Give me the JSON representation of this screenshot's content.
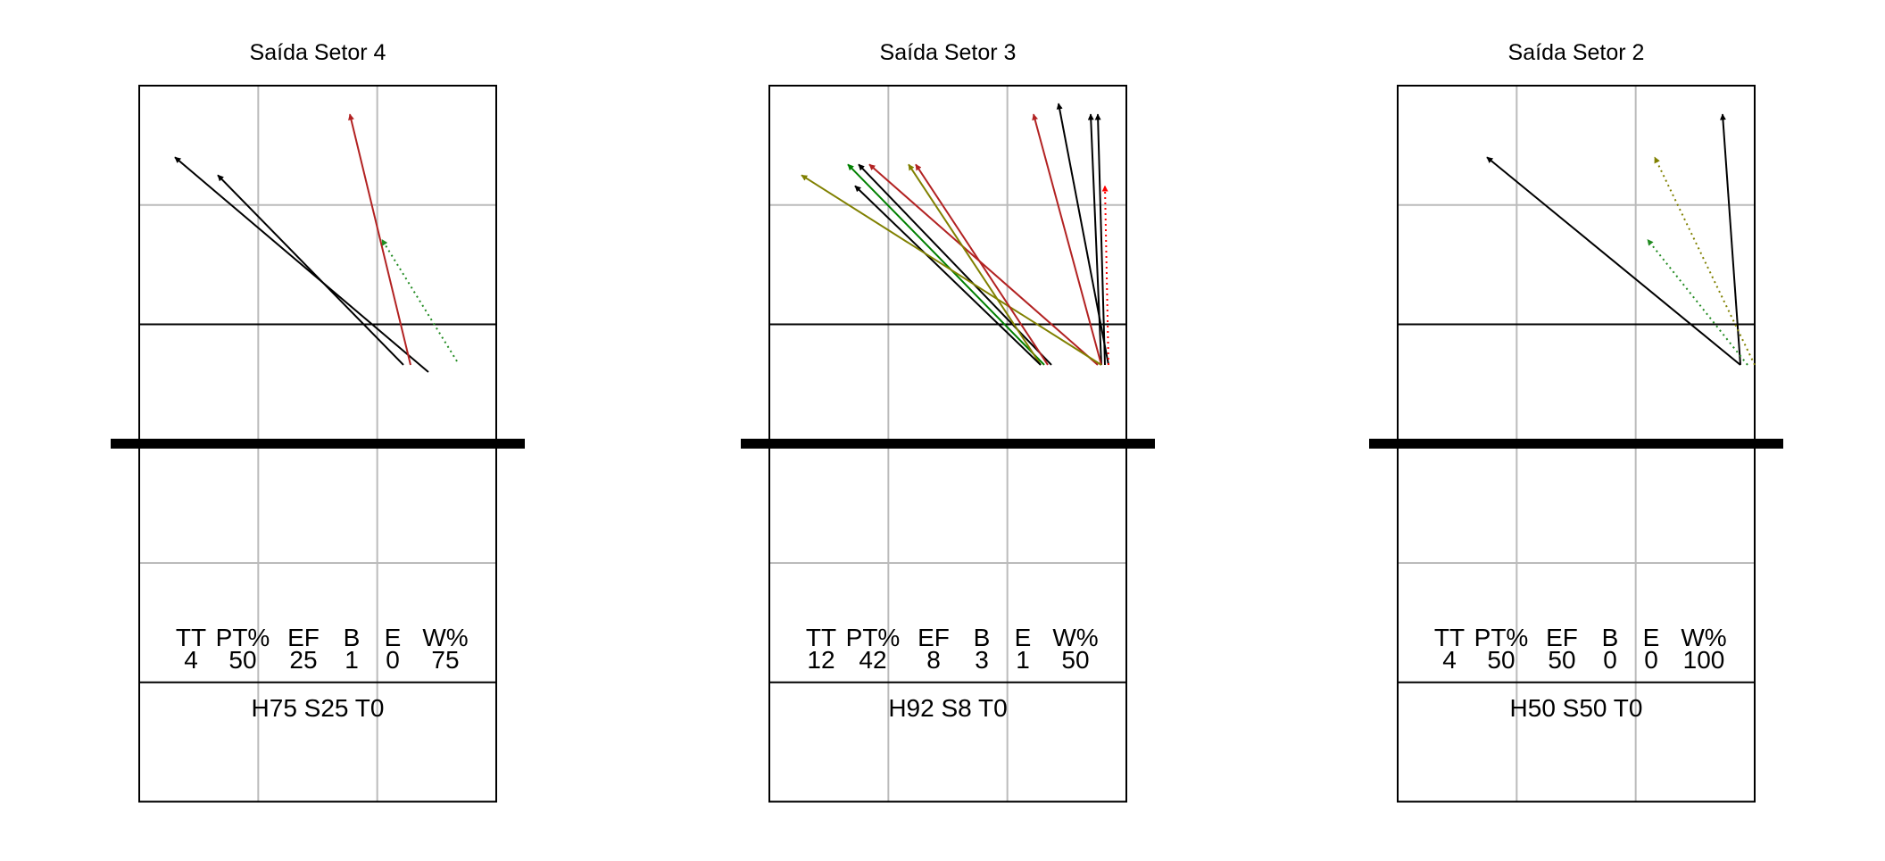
{
  "chart_data": [
    {
      "type": "arrow-map",
      "title": "Saída Setor 4",
      "stats_header": [
        "TT",
        "PT%",
        "EF",
        "B",
        "E",
        "W%"
      ],
      "stats_values": [
        "4",
        "50",
        "25",
        "1",
        "0",
        "75"
      ],
      "footer": "H75 S25 T0",
      "arrows": [
        {
          "from": [
            8.1,
            2.0
          ],
          "to": [
            1.0,
            8.0
          ],
          "color": "#000000",
          "style": "solid"
        },
        {
          "from": [
            7.4,
            2.2
          ],
          "to": [
            2.2,
            7.5
          ],
          "color": "#000000",
          "style": "solid"
        },
        {
          "from": [
            7.6,
            2.2
          ],
          "to": [
            5.9,
            9.2
          ],
          "color": "#b22222",
          "style": "solid"
        },
        {
          "from": [
            8.9,
            2.3
          ],
          "to": [
            6.8,
            5.7
          ],
          "color": "#228b22",
          "style": "dotted"
        }
      ]
    },
    {
      "type": "arrow-map",
      "title": "Saída Setor 3",
      "stats_header": [
        "TT",
        "PT%",
        "EF",
        "B",
        "E",
        "W%"
      ],
      "stats_values": [
        "12",
        "42",
        "8",
        "3",
        "1",
        "50"
      ],
      "footer": "H92 S8 T0",
      "arrows": [
        {
          "from": [
            9.5,
            2.2
          ],
          "to": [
            8.1,
            9.5
          ],
          "color": "#000000",
          "style": "solid"
        },
        {
          "from": [
            9.3,
            2.2
          ],
          "to": [
            9.0,
            9.2
          ],
          "color": "#000000",
          "style": "solid"
        },
        {
          "from": [
            9.4,
            2.2
          ],
          "to": [
            9.2,
            9.2
          ],
          "color": "#000000",
          "style": "solid"
        },
        {
          "from": [
            9.3,
            2.2
          ],
          "to": [
            7.4,
            9.2
          ],
          "color": "#b22222",
          "style": "solid"
        },
        {
          "from": [
            9.5,
            2.2
          ],
          "to": [
            9.4,
            7.2
          ],
          "color": "#ff0000",
          "style": "dotted"
        },
        {
          "from": [
            9.2,
            2.2
          ],
          "to": [
            2.8,
            7.8
          ],
          "color": "#b22222",
          "style": "solid"
        },
        {
          "from": [
            7.9,
            2.2
          ],
          "to": [
            2.5,
            7.8
          ],
          "color": "#000000",
          "style": "solid"
        },
        {
          "from": [
            7.7,
            2.2
          ],
          "to": [
            2.2,
            7.8
          ],
          "color": "#008000",
          "style": "solid"
        },
        {
          "from": [
            7.6,
            2.2
          ],
          "to": [
            3.9,
            7.8
          ],
          "color": "#808000",
          "style": "solid"
        },
        {
          "from": [
            7.6,
            2.2
          ],
          "to": [
            2.4,
            7.2
          ],
          "color": "#000000",
          "style": "solid"
        },
        {
          "from": [
            9.3,
            2.2
          ],
          "to": [
            0.9,
            7.5
          ],
          "color": "#808000",
          "style": "solid"
        },
        {
          "from": [
            7.8,
            2.2
          ],
          "to": [
            4.1,
            7.8
          ],
          "color": "#b22222",
          "style": "solid"
        }
      ]
    },
    {
      "type": "arrow-map",
      "title": "Saída Setor 2",
      "stats_header": [
        "TT",
        "PT%",
        "EF",
        "B",
        "E",
        "W%"
      ],
      "stats_values": [
        "4",
        "50",
        "50",
        "0",
        "0",
        "100"
      ],
      "footer": "H50 S50 T0",
      "arrows": [
        {
          "from": [
            9.6,
            2.2
          ],
          "to": [
            2.5,
            8.0
          ],
          "color": "#000000",
          "style": "solid"
        },
        {
          "from": [
            9.6,
            2.2
          ],
          "to": [
            9.1,
            9.2
          ],
          "color": "#000000",
          "style": "solid"
        },
        {
          "from": [
            10.0,
            2.2
          ],
          "to": [
            7.2,
            8.0
          ],
          "color": "#808000",
          "style": "dotted"
        },
        {
          "from": [
            9.8,
            2.2
          ],
          "to": [
            7.0,
            5.7
          ],
          "color": "#228b22",
          "style": "dotted"
        }
      ]
    }
  ]
}
